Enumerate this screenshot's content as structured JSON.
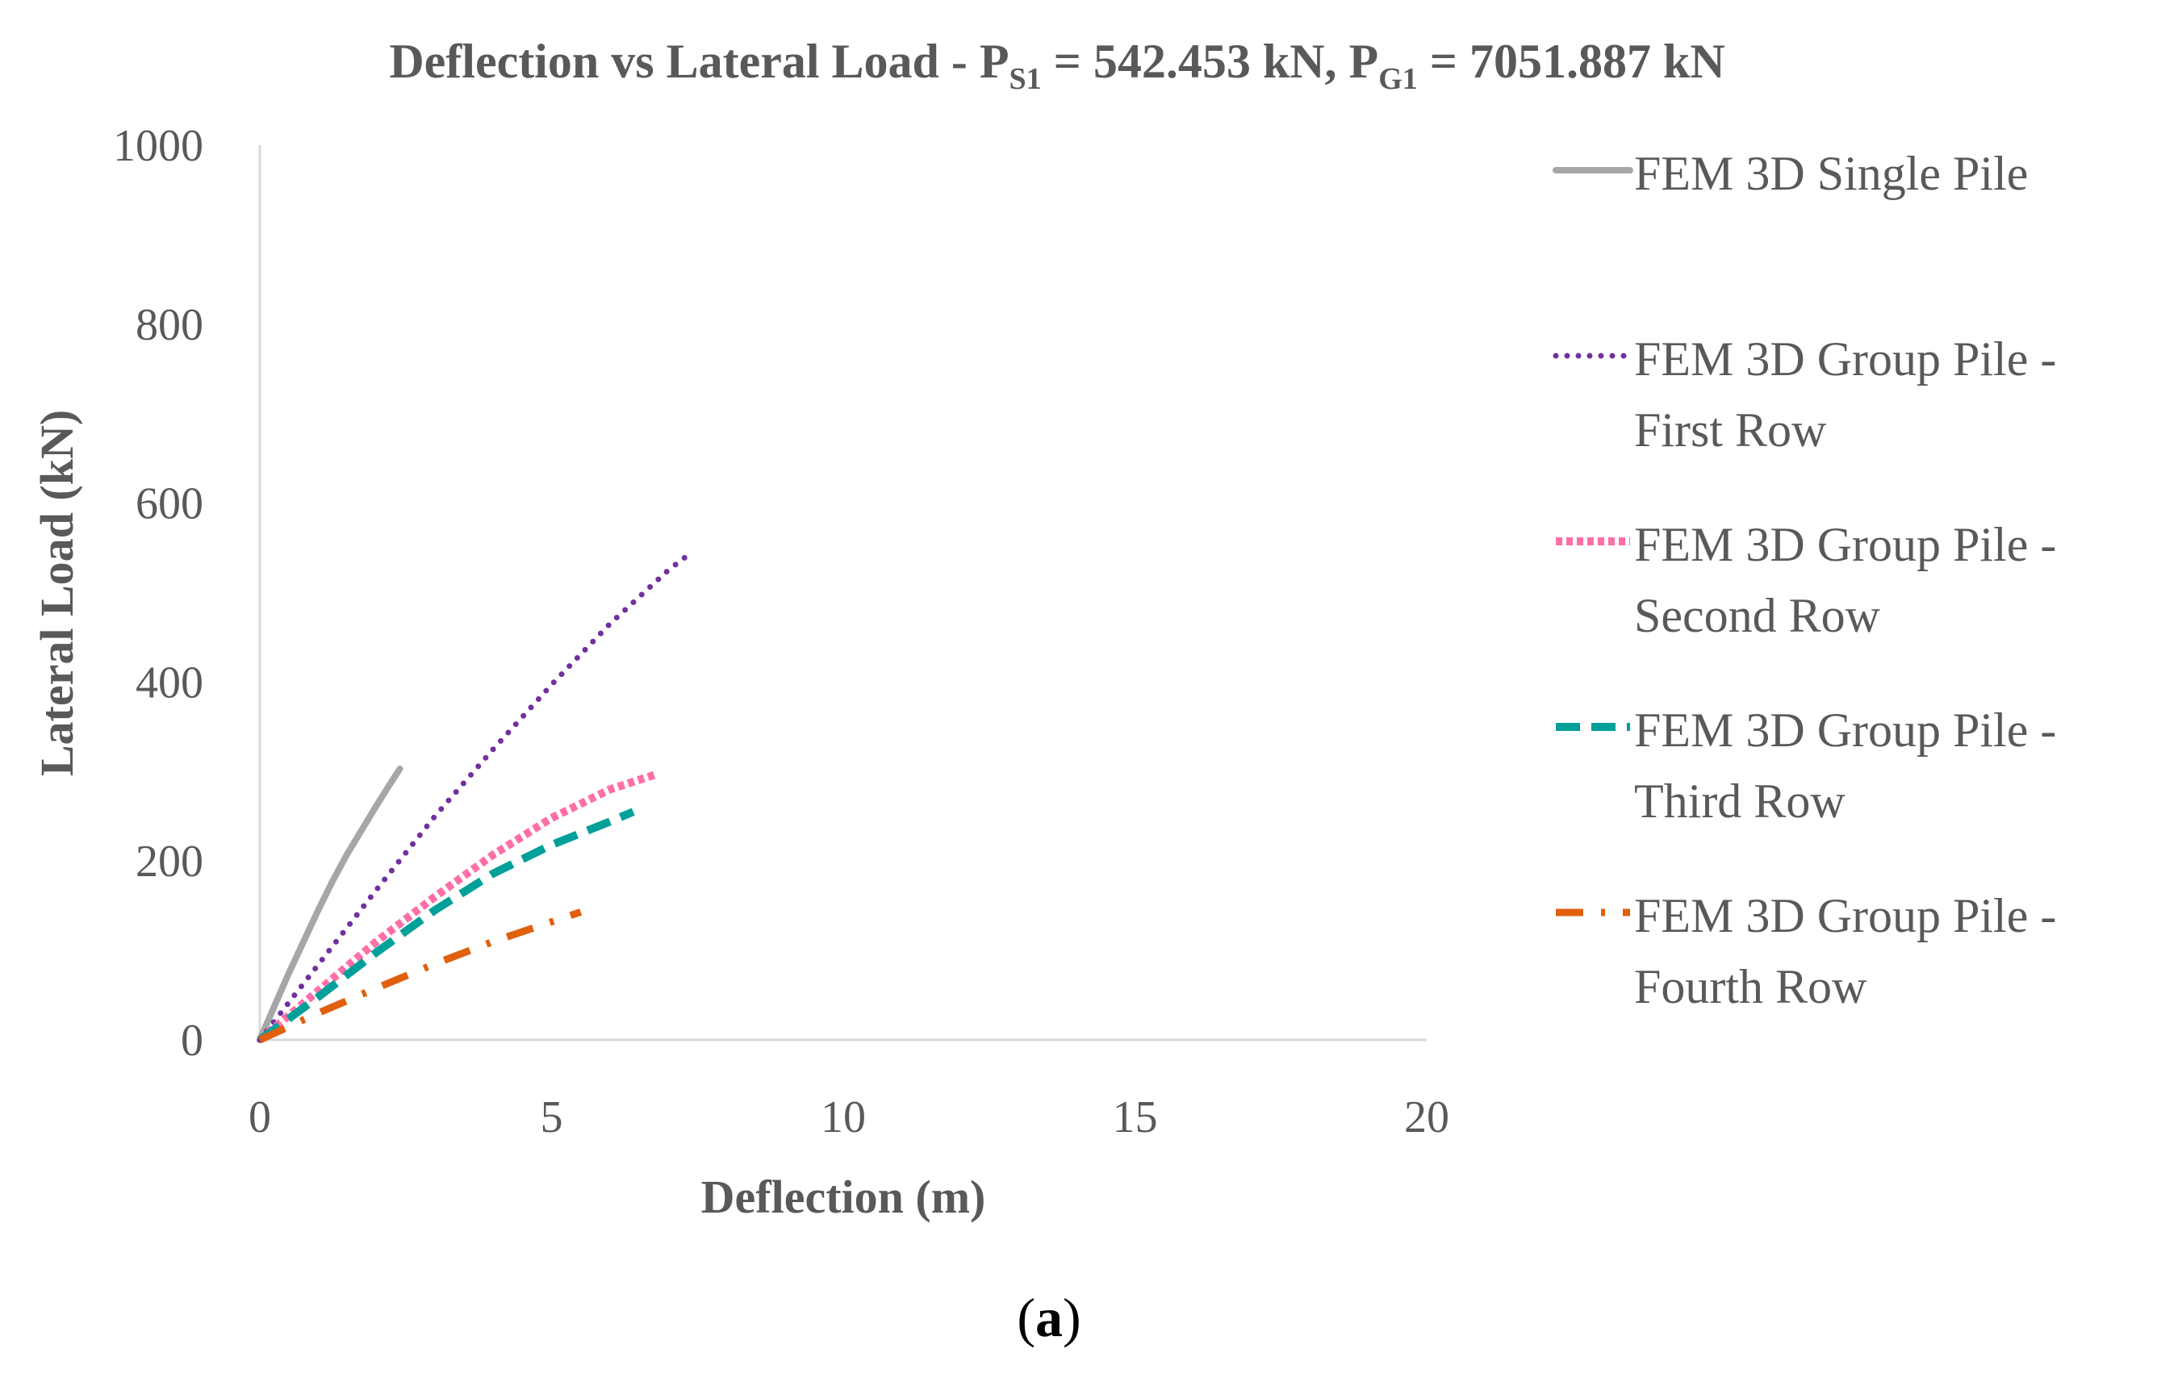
{
  "chart_data": {
    "type": "line",
    "title": {
      "prefix": "Deflection vs Lateral Load - P",
      "sub1": "S1",
      "mid": " = 542.453 kN,  P",
      "sub2": "G1",
      "suffix": " = 7051.887 kN"
    },
    "xlabel": "Deflection (m)",
    "ylabel": "Lateral Load (kN)",
    "xlim": [
      0,
      20
    ],
    "ylim": [
      0,
      1000
    ],
    "x_ticks": [
      "0",
      "5",
      "10",
      "15",
      "20"
    ],
    "y_ticks": [
      "0",
      "200",
      "400",
      "600",
      "800",
      "1000"
    ],
    "grid": false,
    "legend_position": "right",
    "caption": {
      "open": "(",
      "letter": "a",
      "close": ")"
    },
    "series": [
      {
        "name": "FEM 3D Single Pile",
        "legend_lines": [
          "FEM 3D Single Pile"
        ],
        "color": "#A6A6A6",
        "style": "solid",
        "x": [
          0,
          0.25,
          0.5,
          0.75,
          1.0,
          1.25,
          1.5,
          1.75,
          2.0,
          2.2,
          2.4
        ],
        "y": [
          0,
          38,
          75,
          110,
          145,
          178,
          208,
          235,
          262,
          283,
          303
        ]
      },
      {
        "name": "FEM 3D Group Pile - First Row",
        "legend_lines": [
          "FEM 3D Group Pile -",
          "First Row"
        ],
        "color": "#7030A0",
        "style": "dotted",
        "x": [
          0,
          0.5,
          1,
          2,
          3,
          4,
          5,
          6,
          7,
          7.3
        ],
        "y": [
          0,
          42,
          84,
          168,
          250,
          325,
          397,
          465,
          525,
          540
        ]
      },
      {
        "name": "FEM 3D Group Pile - Second Row",
        "legend_lines": [
          "FEM 3D Group Pile -",
          "Second Row"
        ],
        "color": "#FF6FA8",
        "style": "dense-dotted",
        "x": [
          0,
          1,
          2,
          3,
          4,
          5,
          6,
          6.8
        ],
        "y": [
          0,
          55,
          110,
          160,
          207,
          248,
          280,
          297
        ]
      },
      {
        "name": "FEM 3D Group Pile - Third Row",
        "legend_lines": [
          "FEM 3D Group Pile -",
          "Third Row"
        ],
        "color": "#00A09A",
        "style": "dashed",
        "x": [
          0,
          1,
          2,
          3,
          4,
          5,
          6,
          6.4
        ],
        "y": [
          0,
          48,
          98,
          145,
          186,
          218,
          244,
          255
        ]
      },
      {
        "name": "FEM 3D Group Pile - Fourth Row",
        "legend_lines": [
          "FEM 3D Group Pile -",
          "Fourth Row"
        ],
        "color": "#E0600D",
        "style": "dash-dot",
        "x": [
          0,
          1,
          2,
          3,
          4,
          5,
          5.5
        ],
        "y": [
          0,
          30,
          58,
          85,
          110,
          132,
          143
        ]
      }
    ]
  }
}
